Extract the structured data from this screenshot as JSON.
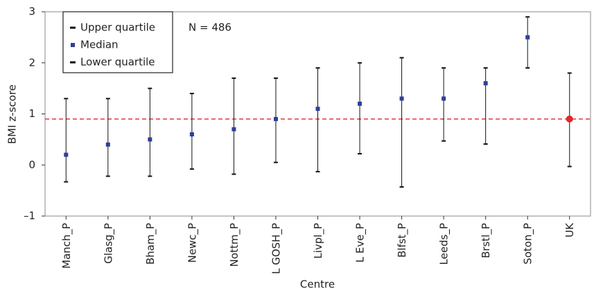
{
  "chart_data": {
    "type": "errorbar",
    "x_label": "Centre",
    "y_label": "BMI z-score",
    "annotation": "N = 486",
    "categories": [
      "Manch_P",
      "Glasg_P",
      "Bham_P",
      "Newc_P",
      "Nottm_P",
      "L GOSH_P",
      "Livpl_P",
      "L Eve_P",
      "Blfst_P",
      "Leeds_P",
      "Brstl_P",
      "Soton_P",
      "UK"
    ],
    "series": [
      {
        "name": "Upper quartile",
        "color": "#111111",
        "values": [
          1.3,
          1.3,
          1.5,
          1.4,
          1.7,
          1.7,
          1.9,
          2.0,
          2.1,
          1.9,
          1.9,
          2.9,
          1.8
        ]
      },
      {
        "name": "Median",
        "color": "#2e3f96",
        "values": [
          0.2,
          0.4,
          0.5,
          0.6,
          0.7,
          0.9,
          1.1,
          1.2,
          1.3,
          1.3,
          1.6,
          2.5,
          0.9
        ]
      },
      {
        "name": "Lower quartile",
        "color": "#111111",
        "values": [
          -0.33,
          -0.22,
          -0.22,
          -0.08,
          -0.18,
          0.05,
          -0.13,
          0.22,
          -0.43,
          0.47,
          0.41,
          1.9,
          -0.03
        ]
      }
    ],
    "highlight": {
      "category": "UK",
      "color": "#e3262b"
    },
    "reference_line": {
      "value": 0.9,
      "color": "#e8353a",
      "style": "dashed"
    },
    "ylim": [
      -1,
      3
    ],
    "yticks": [
      {
        "value": -1,
        "label": "–1"
      },
      0,
      1,
      2,
      3
    ],
    "legend_position": "upper left"
  }
}
